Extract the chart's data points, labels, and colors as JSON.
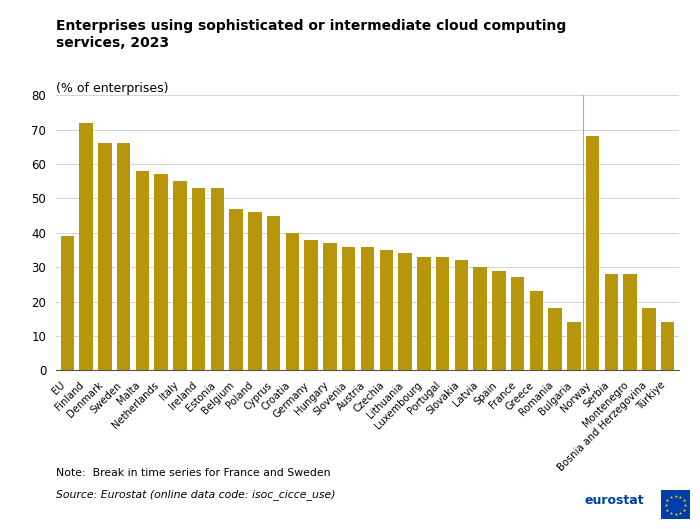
{
  "title": "Enterprises using sophisticated or intermediate cloud computing\nservices, 2023",
  "subtitle": "(% of enterprises)",
  "bar_color": "#B8960C",
  "separator_color": "#aaaaaa",
  "categories": [
    "EU",
    "Finland",
    "Denmark",
    "Sweden",
    "Malta",
    "Netherlands",
    "Italy",
    "Ireland",
    "Estonia",
    "Belgium",
    "Poland",
    "Cyprus",
    "Croatia",
    "Germany",
    "Hungary",
    "Slovenia",
    "Austria",
    "Czechia",
    "Lithuania",
    "Luxembourg",
    "Portugal",
    "Slovakia",
    "Latvia",
    "Spain",
    "France",
    "Greece",
    "Romania",
    "Bulgaria",
    "Norway",
    "Serbia",
    "Montenegro",
    "Bosnia and Herzegovina",
    "Türkiye"
  ],
  "values": [
    39,
    72,
    66,
    66,
    58,
    57,
    55,
    53,
    53,
    47,
    46,
    45,
    40,
    38,
    37,
    36,
    36,
    35,
    34,
    33,
    33,
    32,
    30,
    29,
    27,
    23,
    18,
    14,
    68,
    28,
    28,
    18,
    14
  ],
  "ylim": [
    0,
    80
  ],
  "yticks": [
    0,
    10,
    20,
    30,
    40,
    50,
    60,
    70,
    80
  ],
  "note": "Note:  Break in time series for France and Sweden",
  "source": "Source: Eurostat (online data code: isoc_cicce_use)",
  "bg_color": "#ffffff",
  "separator_after_index": 27,
  "ytick_fontsize": 8.5,
  "label_fontsize": 7.2
}
